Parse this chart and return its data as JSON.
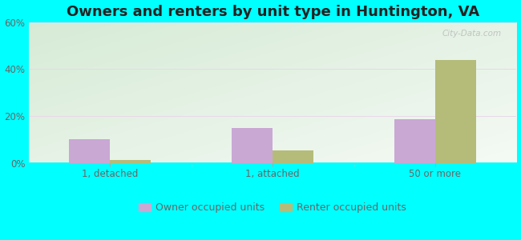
{
  "title": "Owners and renters by unit type in Huntington, VA",
  "categories": [
    "1, detached",
    "1, attached",
    "50 or more"
  ],
  "owner_values": [
    10.0,
    15.0,
    18.5
  ],
  "renter_values": [
    1.2,
    5.5,
    44.0
  ],
  "owner_color": "#c9a8d4",
  "renter_color": "#b5bc7a",
  "ylim": [
    0,
    60
  ],
  "yticks": [
    0,
    20,
    40,
    60
  ],
  "ytick_labels": [
    "0%",
    "20%",
    "40%",
    "60%"
  ],
  "background_color": "#00ffff",
  "bar_width": 0.25,
  "legend_owner": "Owner occupied units",
  "legend_renter": "Renter occupied units",
  "watermark": "City-Data.com",
  "title_fontsize": 13,
  "tick_fontsize": 8.5,
  "legend_fontsize": 9,
  "tick_color": "#666666",
  "title_color": "#222222"
}
